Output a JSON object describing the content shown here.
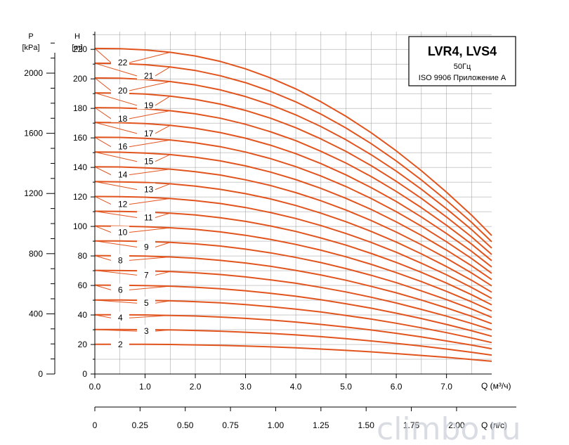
{
  "watermark": "climbo.ru",
  "legend": {
    "title": "LVR4, LVS4",
    "frequency": "50Гц",
    "standard": "ISO 9906 Приложение A"
  },
  "axes": {
    "p_symbol": "P",
    "p_unit": "[kPa]",
    "h_symbol": "H",
    "h_unit": "[m]",
    "q_m3h_label": "Q (м³/ч)",
    "q_ls_label": "Q (л/с)"
  },
  "colors": {
    "curve": "#e2541e",
    "grid": "#999999"
  },
  "chart_data": {
    "type": "line",
    "title": "LVR4, LVS4",
    "x": [
      0,
      0.5,
      1,
      1.5,
      2,
      2.5,
      3,
      3.5,
      4,
      4.5,
      5,
      5.5,
      6,
      6.5,
      7,
      7.5,
      7.9
    ],
    "xlim": [
      0,
      8.25
    ],
    "ylim": [
      0,
      232
    ],
    "grid": true,
    "legend_position": "top-right",
    "x_ticks_m3h": [
      "0.0",
      "1.0",
      "2.0",
      "3.0",
      "4.0",
      "5.0",
      "6.0",
      "7.0"
    ],
    "x_ticks_ls": [
      "0",
      "0.25",
      "0.50",
      "0.75",
      "1.00",
      "1.25",
      "1.50",
      "1.75",
      "2.00"
    ],
    "y_ticks_h": [
      "0",
      "20",
      "40",
      "60",
      "80",
      "100",
      "120",
      "140",
      "160",
      "180",
      "200",
      "220"
    ],
    "y_ticks_p": [
      "0",
      "400",
      "800",
      "1200",
      "1600",
      "2000"
    ],
    "stage_label_h": [
      20,
      29,
      38,
      48,
      57,
      67,
      77,
      86,
      96,
      106,
      115,
      125,
      135,
      144,
      154,
      163,
      173,
      182,
      192,
      202,
      211,
      221
    ],
    "series": [
      {
        "name": "2",
        "values": [
          20.1,
          20.1,
          20.1,
          20.0,
          19.7,
          19.4,
          18.9,
          18.4,
          17.7,
          16.9,
          16.0,
          15.0,
          13.8,
          12.6,
          11.3,
          9.8,
          8.6
        ]
      },
      {
        "name": "3",
        "values": [
          30.1,
          30.1,
          30.0,
          29.9,
          29.5,
          29.0,
          28.3,
          27.5,
          26.5,
          25.3,
          23.9,
          22.4,
          20.7,
          18.9,
          16.9,
          14.7,
          12.8
        ]
      },
      {
        "name": "4",
        "values": [
          40.1,
          40.1,
          40.0,
          39.7,
          39.3,
          38.6,
          37.7,
          36.6,
          35.2,
          33.6,
          31.8,
          29.8,
          27.6,
          25.1,
          22.4,
          19.6,
          17.1
        ]
      },
      {
        "name": "5",
        "values": [
          50.1,
          50.1,
          49.9,
          49.6,
          49.0,
          48.2,
          47.0,
          45.6,
          43.9,
          42.0,
          39.7,
          37.2,
          34.4,
          31.3,
          28.0,
          24.4,
          21.3
        ]
      },
      {
        "name": "6",
        "values": [
          60.2,
          60.1,
          59.9,
          59.5,
          58.8,
          57.8,
          56.4,
          54.7,
          52.7,
          50.3,
          47.6,
          44.6,
          41.2,
          37.6,
          33.6,
          29.3,
          25.6
        ]
      },
      {
        "name": "7",
        "values": [
          70.2,
          70.1,
          69.9,
          69.4,
          68.6,
          67.4,
          65.8,
          63.8,
          61.5,
          58.7,
          55.6,
          52.0,
          48.1,
          43.8,
          39.2,
          34.2,
          29.9
        ]
      },
      {
        "name": "8",
        "values": [
          80.2,
          80.1,
          79.9,
          79.3,
          78.4,
          77.0,
          75.2,
          73.0,
          70.2,
          67.1,
          63.5,
          59.4,
          55.0,
          50.1,
          44.8,
          39.1,
          34.1
        ]
      },
      {
        "name": "9",
        "values": [
          90.2,
          90.2,
          89.8,
          89.2,
          88.2,
          86.7,
          84.6,
          82.1,
          79.0,
          75.5,
          71.4,
          66.9,
          61.9,
          56.3,
          50.4,
          44.0,
          38.4
        ]
      },
      {
        "name": "10",
        "values": [
          100.3,
          100.2,
          99.8,
          99.1,
          98.0,
          96.3,
          94.0,
          91.2,
          87.8,
          83.9,
          79.4,
          74.3,
          68.7,
          62.6,
          56.0,
          48.9,
          42.7
        ]
      },
      {
        "name": "11",
        "values": [
          110.3,
          110.2,
          109.8,
          109.0,
          107.8,
          105.9,
          103.4,
          100.3,
          96.6,
          92.2,
          87.3,
          81.7,
          75.6,
          68.9,
          61.6,
          53.7,
          46.9
        ]
      },
      {
        "name": "12",
        "values": [
          120.3,
          120.2,
          119.8,
          118.9,
          117.5,
          115.5,
          112.8,
          109.4,
          105.4,
          100.6,
          95.2,
          89.2,
          82.5,
          75.1,
          67.2,
          58.6,
          51.2
        ]
      },
      {
        "name": "13",
        "values": [
          130.4,
          130.2,
          129.8,
          128.9,
          127.3,
          125.1,
          122.2,
          118.6,
          114.2,
          109.0,
          103.2,
          96.6,
          89.4,
          81.4,
          72.8,
          63.5,
          55.4
        ]
      },
      {
        "name": "14",
        "values": [
          140.4,
          140.3,
          139.7,
          138.8,
          137.1,
          134.8,
          131.6,
          127.7,
          122.9,
          117.4,
          111.1,
          104.0,
          96.2,
          87.6,
          78.4,
          68.4,
          59.7
        ]
      },
      {
        "name": "15",
        "values": [
          150.4,
          150.3,
          149.7,
          148.7,
          146.9,
          144.4,
          141.0,
          136.8,
          131.7,
          125.8,
          119.0,
          111.5,
          103.1,
          93.9,
          84.0,
          73.3,
          64.0
        ]
      },
      {
        "name": "16",
        "values": [
          160.4,
          160.3,
          159.7,
          158.6,
          156.7,
          154.0,
          150.4,
          145.9,
          140.5,
          134.2,
          127.0,
          118.9,
          110.0,
          100.2,
          89.6,
          78.2,
          68.2
        ]
      },
      {
        "name": "17",
        "values": [
          170.5,
          170.3,
          169.7,
          168.5,
          166.5,
          163.6,
          159.8,
          155.0,
          149.3,
          142.6,
          134.9,
          126.3,
          116.9,
          106.4,
          95.2,
          83.1,
          72.5
        ]
      },
      {
        "name": "18",
        "values": [
          180.5,
          180.3,
          179.7,
          178.4,
          176.3,
          173.3,
          169.2,
          164.1,
          158.1,
          150.9,
          142.9,
          133.8,
          123.7,
          112.7,
          100.8,
          88.0,
          76.8
        ]
      },
      {
        "name": "19",
        "values": [
          190.5,
          190.3,
          189.7,
          188.3,
          186.1,
          182.9,
          178.6,
          173.3,
          166.9,
          159.3,
          150.8,
          141.2,
          130.6,
          119.0,
          106.4,
          92.9,
          81.0
        ]
      },
      {
        "name": "20",
        "values": [
          200.6,
          200.4,
          199.6,
          198.2,
          195.9,
          192.5,
          188.0,
          182.4,
          175.6,
          167.7,
          158.7,
          148.6,
          137.5,
          125.2,
          112.0,
          97.8,
          85.3
        ]
      },
      {
        "name": "21",
        "values": [
          210.6,
          210.4,
          209.6,
          208.1,
          205.7,
          202.1,
          197.4,
          191.5,
          184.4,
          176.1,
          166.7,
          156.1,
          144.4,
          131.5,
          117.6,
          102.7,
          89.6
        ]
      },
      {
        "name": "22",
        "values": [
          220.6,
          220.4,
          219.6,
          218.0,
          215.5,
          211.8,
          206.8,
          200.6,
          193.2,
          184.5,
          174.6,
          163.5,
          151.2,
          137.7,
          123.2,
          107.6,
          93.8
        ]
      }
    ]
  }
}
